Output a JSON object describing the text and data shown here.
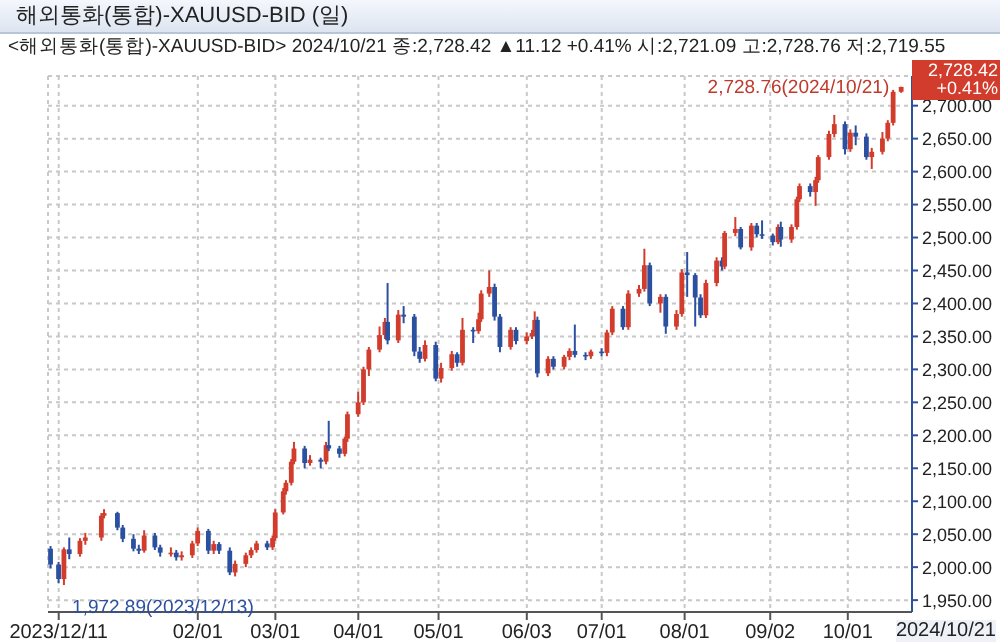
{
  "chart_data": {
    "type": "candlestick",
    "title": "해외통화(통합)-XAUUSD-BID (일)",
    "subtitle": "<해외통화(통합)-XAUUSD-BID> 2024/10/21 종:2,728.42 ▲11.12 +0.41% 시:2,721.09 고:2,728.76 저:2,719.55",
    "colors": [
      "#2c50a0",
      "#2c50a0",
      "#d23c2c",
      "#2c50a0",
      "#d23c2c",
      "#d23c2c",
      "#d23c2c",
      "#d23c2c",
      "#2c50a0",
      "#2c50a0",
      "#2c50a0",
      "#2c50a0",
      "#d23c2c",
      "#2c50a0",
      "#2c50a0",
      "#d23c2c",
      "#2c50a0",
      "#d23c2c",
      "#d23c2c",
      "#d23c2c",
      "#2c50a0",
      "#d23c2c",
      "#2c50a0",
      "#2c50a0",
      "#d23c2c",
      "#d23c2c",
      "#d23c2c",
      "#d23c2c",
      "#2c50a0",
      "#d23c2c",
      "#d23c2c",
      "#d23c2c",
      "#d23c2c",
      "#d23c2c",
      "#d23c2c",
      "#2c50a0",
      "#d23c2c",
      "#2c50a0",
      "#d23c2c",
      "#2c50a0",
      "#2c50a0",
      "#d23c2c",
      "#d23c2c",
      "#d23c2c",
      "#d23c2c",
      "#d23c2c",
      "#d23c2c",
      "#d23c2c",
      "#2c50a0",
      "#d23c2c",
      "#2c50a0",
      "#2c50a0",
      "#2c50a0",
      "#d23c2c",
      "#2c50a0",
      "#d23c2c",
      "#d23c2c",
      "#2c50a0",
      "#d23c2c",
      "#2c50a0",
      "#d23c2c",
      "#d23c2c",
      "#d23c2c",
      "#2c50a0",
      "#2c50a0",
      "#d23c2c",
      "#2c50a0",
      "#d23c2c",
      "#d23c2c",
      "#d23c2c",
      "#2c50a0",
      "#d23c2c",
      "#2c50a0",
      "#d23c2c",
      "#d23c2c",
      "#2c50a0",
      "#2c50a0",
      "#d23c2c",
      "#2c50a0",
      "#d23c2c",
      "#d23c2c",
      "#2c50a0",
      "#d23c2c",
      "#d23c2c",
      "#d23c2c",
      "#2c50a0",
      "#d23c2c",
      "#2c50a0",
      "#d23c2c",
      "#d23c2c",
      "#2c50a0",
      "#2c50a0",
      "#2c50a0",
      "#d23c2c",
      "#d23c2c",
      "#2c50a0",
      "#d23c2c",
      "#d23c2c",
      "#2c50a0",
      "#d23c2c",
      "#2c50a0",
      "#2c50a0",
      "#2c50a0",
      "#d23c2c",
      "#2c50a0",
      "#d23c2c",
      "#d23c2c",
      "#d23c2c",
      "#2c50a0",
      "#d23c2c",
      "#d23c2c",
      "#d23c2c",
      "#d23c2c",
      "#2c50a0",
      "#d23c2c",
      "#2c50a0",
      "#2c50a0",
      "#d23c2c",
      "#d23c2c",
      "#d23c2c",
      "#d23c2c",
      "#d23c2c"
    ],
    "x": [
      "2023-12-08",
      "2023-12-11",
      "2023-12-13",
      "2023-12-15",
      "2023-12-19",
      "2023-12-21",
      "2023-12-27",
      "2023-12-28",
      "2024-01-02",
      "2024-01-04",
      "2024-01-08",
      "2024-01-10",
      "2024-01-12",
      "2024-01-16",
      "2024-01-18",
      "2024-01-22",
      "2024-01-24",
      "2024-01-26",
      "2024-01-30",
      "2024-02-01",
      "2024-02-05",
      "2024-02-07",
      "2024-02-09",
      "2024-02-13",
      "2024-02-15",
      "2024-02-19",
      "2024-02-21",
      "2024-02-23",
      "2024-02-27",
      "2024-02-29",
      "2024-03-01",
      "2024-03-04",
      "2024-03-05",
      "2024-03-07",
      "2024-03-08",
      "2024-03-12",
      "2024-03-14",
      "2024-03-18",
      "2024-03-20",
      "2024-03-21",
      "2024-03-25",
      "2024-03-27",
      "2024-03-28",
      "2024-04-01",
      "2024-04-03",
      "2024-04-05",
      "2024-04-09",
      "2024-04-11",
      "2024-04-12",
      "2024-04-16",
      "2024-04-18",
      "2024-04-22",
      "2024-04-24",
      "2024-04-26",
      "2024-04-30",
      "2024-05-02",
      "2024-05-06",
      "2024-05-08",
      "2024-05-10",
      "2024-05-14",
      "2024-05-16",
      "2024-05-17",
      "2024-05-20",
      "2024-05-22",
      "2024-05-24",
      "2024-05-28",
      "2024-05-30",
      "2024-06-03",
      "2024-06-05",
      "2024-06-06",
      "2024-06-07",
      "2024-06-11",
      "2024-06-13",
      "2024-06-17",
      "2024-06-19",
      "2024-06-21",
      "2024-06-25",
      "2024-06-27",
      "2024-07-01",
      "2024-07-03",
      "2024-07-05",
      "2024-07-09",
      "2024-07-11",
      "2024-07-15",
      "2024-07-17",
      "2024-07-19",
      "2024-07-23",
      "2024-07-25",
      "2024-07-29",
      "2024-07-31",
      "2024-08-02",
      "2024-08-05",
      "2024-08-07",
      "2024-08-09",
      "2024-08-13",
      "2024-08-15",
      "2024-08-16",
      "2024-08-20",
      "2024-08-22",
      "2024-08-26",
      "2024-08-28",
      "2024-08-30",
      "2024-09-03",
      "2024-09-05",
      "2024-09-06",
      "2024-09-10",
      "2024-09-12",
      "2024-09-13",
      "2024-09-17",
      "2024-09-19",
      "2024-09-20",
      "2024-09-24",
      "2024-09-26",
      "2024-09-30",
      "2024-10-02",
      "2024-10-04",
      "2024-10-08",
      "2024-10-10",
      "2024-10-14",
      "2024-10-16",
      "2024-10-18",
      "2024-10-21"
    ],
    "ohlc": [
      [
        2028,
        2032,
        1998,
        2004
      ],
      [
        2004,
        2008,
        1976,
        1982
      ],
      [
        1982,
        2030,
        1972.89,
        2027
      ],
      [
        2027,
        2045,
        2012,
        2020
      ],
      [
        2020,
        2044,
        2016,
        2040
      ],
      [
        2040,
        2052,
        2034,
        2045
      ],
      [
        2045,
        2082,
        2040,
        2078
      ],
      [
        2078,
        2088,
        2074,
        2082
      ],
      [
        2082,
        2084,
        2056,
        2060
      ],
      [
        2060,
        2064,
        2038,
        2043
      ],
      [
        2043,
        2050,
        2024,
        2028
      ],
      [
        2028,
        2034,
        2020,
        2025
      ],
      [
        2025,
        2056,
        2022,
        2048
      ],
      [
        2048,
        2052,
        2026,
        2030
      ],
      [
        2030,
        2034,
        2016,
        2022
      ],
      [
        2022,
        2030,
        2016,
        2022
      ],
      [
        2022,
        2026,
        2010,
        2015
      ],
      [
        2015,
        2024,
        2010,
        2018
      ],
      [
        2018,
        2040,
        2014,
        2036
      ],
      [
        2036,
        2060,
        2032,
        2055
      ],
      [
        2055,
        2058,
        2020,
        2025
      ],
      [
        2025,
        2040,
        2020,
        2035
      ],
      [
        2035,
        2038,
        2020,
        2025
      ],
      [
        2025,
        2030,
        1988,
        1992
      ],
      [
        1992,
        2010,
        1986,
        2005
      ],
      [
        2005,
        2022,
        2000,
        2018
      ],
      [
        2018,
        2030,
        2014,
        2026
      ],
      [
        2026,
        2040,
        2022,
        2036
      ],
      [
        2036,
        2040,
        2026,
        2030
      ],
      [
        2030,
        2048,
        2026,
        2044
      ],
      [
        2044,
        2088,
        2040,
        2083
      ],
      [
        2083,
        2120,
        2080,
        2115
      ],
      [
        2115,
        2132,
        2110,
        2128
      ],
      [
        2128,
        2164,
        2124,
        2160
      ],
      [
        2160,
        2190,
        2156,
        2180
      ],
      [
        2180,
        2184,
        2150,
        2158
      ],
      [
        2158,
        2170,
        2154,
        2163
      ],
      [
        2163,
        2166,
        2150,
        2160
      ],
      [
        2160,
        2190,
        2156,
        2185
      ],
      [
        2185,
        2222,
        2176,
        2180
      ],
      [
        2180,
        2184,
        2166,
        2172
      ],
      [
        2172,
        2198,
        2168,
        2195
      ],
      [
        2195,
        2236,
        2190,
        2232
      ],
      [
        2232,
        2266,
        2228,
        2250
      ],
      [
        2250,
        2304,
        2246,
        2300
      ],
      [
        2300,
        2334,
        2290,
        2330
      ],
      [
        2330,
        2365,
        2326,
        2352
      ],
      [
        2352,
        2378,
        2346,
        2372
      ],
      [
        2372,
        2431,
        2338,
        2344
      ],
      [
        2344,
        2390,
        2340,
        2383
      ],
      [
        2383,
        2396,
        2370,
        2380
      ],
      [
        2380,
        2384,
        2320,
        2327
      ],
      [
        2327,
        2334,
        2310,
        2316
      ],
      [
        2316,
        2344,
        2312,
        2337
      ],
      [
        2337,
        2342,
        2282,
        2286
      ],
      [
        2286,
        2310,
        2280,
        2302
      ],
      [
        2302,
        2328,
        2298,
        2323
      ],
      [
        2323,
        2326,
        2304,
        2310
      ],
      [
        2310,
        2378,
        2306,
        2360
      ],
      [
        2360,
        2364,
        2340,
        2358
      ],
      [
        2358,
        2386,
        2354,
        2376
      ],
      [
        2376,
        2420,
        2372,
        2415
      ],
      [
        2415,
        2450,
        2410,
        2425
      ],
      [
        2425,
        2430,
        2374,
        2380
      ],
      [
        2380,
        2384,
        2326,
        2334
      ],
      [
        2334,
        2364,
        2330,
        2360
      ],
      [
        2360,
        2364,
        2338,
        2343
      ],
      [
        2343,
        2356,
        2338,
        2350
      ],
      [
        2350,
        2360,
        2346,
        2355
      ],
      [
        2355,
        2388,
        2350,
        2375
      ],
      [
        2375,
        2380,
        2288,
        2294
      ],
      [
        2294,
        2320,
        2290,
        2316
      ],
      [
        2316,
        2320,
        2300,
        2304
      ],
      [
        2304,
        2322,
        2300,
        2319
      ],
      [
        2319,
        2332,
        2314,
        2328
      ],
      [
        2328,
        2368,
        2318,
        2322
      ],
      [
        2322,
        2326,
        2314,
        2320
      ],
      [
        2320,
        2330,
        2316,
        2327
      ],
      [
        2327,
        2332,
        2320,
        2325
      ],
      [
        2325,
        2360,
        2320,
        2356
      ],
      [
        2356,
        2396,
        2352,
        2392
      ],
      [
        2392,
        2396,
        2360,
        2364
      ],
      [
        2364,
        2420,
        2360,
        2415
      ],
      [
        2415,
        2428,
        2410,
        2422
      ],
      [
        2422,
        2483,
        2418,
        2458
      ],
      [
        2458,
        2462,
        2396,
        2400
      ],
      [
        2400,
        2414,
        2386,
        2410
      ],
      [
        2410,
        2414,
        2354,
        2365
      ],
      [
        2365,
        2390,
        2360,
        2384
      ],
      [
        2384,
        2452,
        2380,
        2447
      ],
      [
        2447,
        2478,
        2410,
        2443
      ],
      [
        2443,
        2446,
        2365,
        2409
      ],
      [
        2409,
        2414,
        2378,
        2382
      ],
      [
        2382,
        2436,
        2378,
        2431
      ],
      [
        2431,
        2470,
        2426,
        2465
      ],
      [
        2465,
        2470,
        2450,
        2456
      ],
      [
        2456,
        2510,
        2452,
        2507
      ],
      [
        2507,
        2531,
        2502,
        2513
      ],
      [
        2513,
        2516,
        2482,
        2485
      ],
      [
        2485,
        2522,
        2480,
        2518
      ],
      [
        2518,
        2522,
        2500,
        2505
      ],
      [
        2505,
        2526,
        2498,
        2503
      ],
      [
        2503,
        2506,
        2488,
        2493
      ],
      [
        2493,
        2520,
        2490,
        2516
      ],
      [
        2516,
        2524,
        2486,
        2497
      ],
      [
        2497,
        2520,
        2492,
        2516
      ],
      [
        2516,
        2562,
        2512,
        2558
      ],
      [
        2558,
        2582,
        2554,
        2578
      ],
      [
        2578,
        2582,
        2562,
        2569
      ],
      [
        2569,
        2592,
        2548,
        2587
      ],
      [
        2587,
        2625,
        2583,
        2622
      ],
      [
        2622,
        2662,
        2618,
        2657
      ],
      [
        2657,
        2686,
        2652,
        2672
      ],
      [
        2672,
        2676,
        2626,
        2634
      ],
      [
        2634,
        2664,
        2630,
        2659
      ],
      [
        2659,
        2670,
        2640,
        2653
      ],
      [
        2653,
        2658,
        2618,
        2622
      ],
      [
        2622,
        2636,
        2604,
        2630
      ],
      [
        2630,
        2660,
        2626,
        2650
      ],
      [
        2650,
        2678,
        2646,
        2674
      ],
      [
        2674,
        2724,
        2670,
        2721
      ],
      [
        2721.09,
        2728.76,
        2719.55,
        2728.42
      ]
    ],
    "xlim": [
      "2023-12-07",
      "2024-10-25"
    ],
    "xticks": [
      {
        "value": "2023-12-11",
        "label": "2023/12/11"
      },
      {
        "value": "2024-02-01",
        "label": "02/01"
      },
      {
        "value": "2024-03-01",
        "label": "03/01"
      },
      {
        "value": "2024-04-01",
        "label": "04/01"
      },
      {
        "value": "2024-05-01",
        "label": "05/01"
      },
      {
        "value": "2024-06-03",
        "label": "06/03"
      },
      {
        "value": "2024-07-01",
        "label": "07/01"
      },
      {
        "value": "2024-08-01",
        "label": "08/01"
      },
      {
        "value": "2024-09-02",
        "label": "09/02"
      },
      {
        "value": "2024-10-01",
        "label": "10/01"
      }
    ],
    "ylim": [
      1932,
      2745
    ],
    "yticks": [
      {
        "value": 1950,
        "label": "1,950.00"
      },
      {
        "value": 2000,
        "label": "2,000.00"
      },
      {
        "value": 2050,
        "label": "2,050.00"
      },
      {
        "value": 2100,
        "label": "2,100.00"
      },
      {
        "value": 2150,
        "label": "2,150.00"
      },
      {
        "value": 2200,
        "label": "2,200.00"
      },
      {
        "value": 2250,
        "label": "2,250.00"
      },
      {
        "value": 2300,
        "label": "2,300.00"
      },
      {
        "value": 2350,
        "label": "2,350.00"
      },
      {
        "value": 2400,
        "label": "2,400.00"
      },
      {
        "value": 2450,
        "label": "2,450.00"
      },
      {
        "value": 2500,
        "label": "2,500.00"
      },
      {
        "value": 2550,
        "label": "2,550.00"
      },
      {
        "value": 2600,
        "label": "2,600.00"
      },
      {
        "value": 2650,
        "label": "2,650.00"
      },
      {
        "value": 2700,
        "label": "2,700.00"
      }
    ],
    "grid": true,
    "annotations": [
      {
        "text": "2,728.76(2024/10/21)",
        "x": "2024-10-21",
        "y": 2728.76
      },
      {
        "text": "1,972.89(2023/12/13)",
        "x": "2023-12-13",
        "y": 1972.89
      },
      "2,728.42 +0.41%",
      "2024/10/21"
    ]
  }
}
